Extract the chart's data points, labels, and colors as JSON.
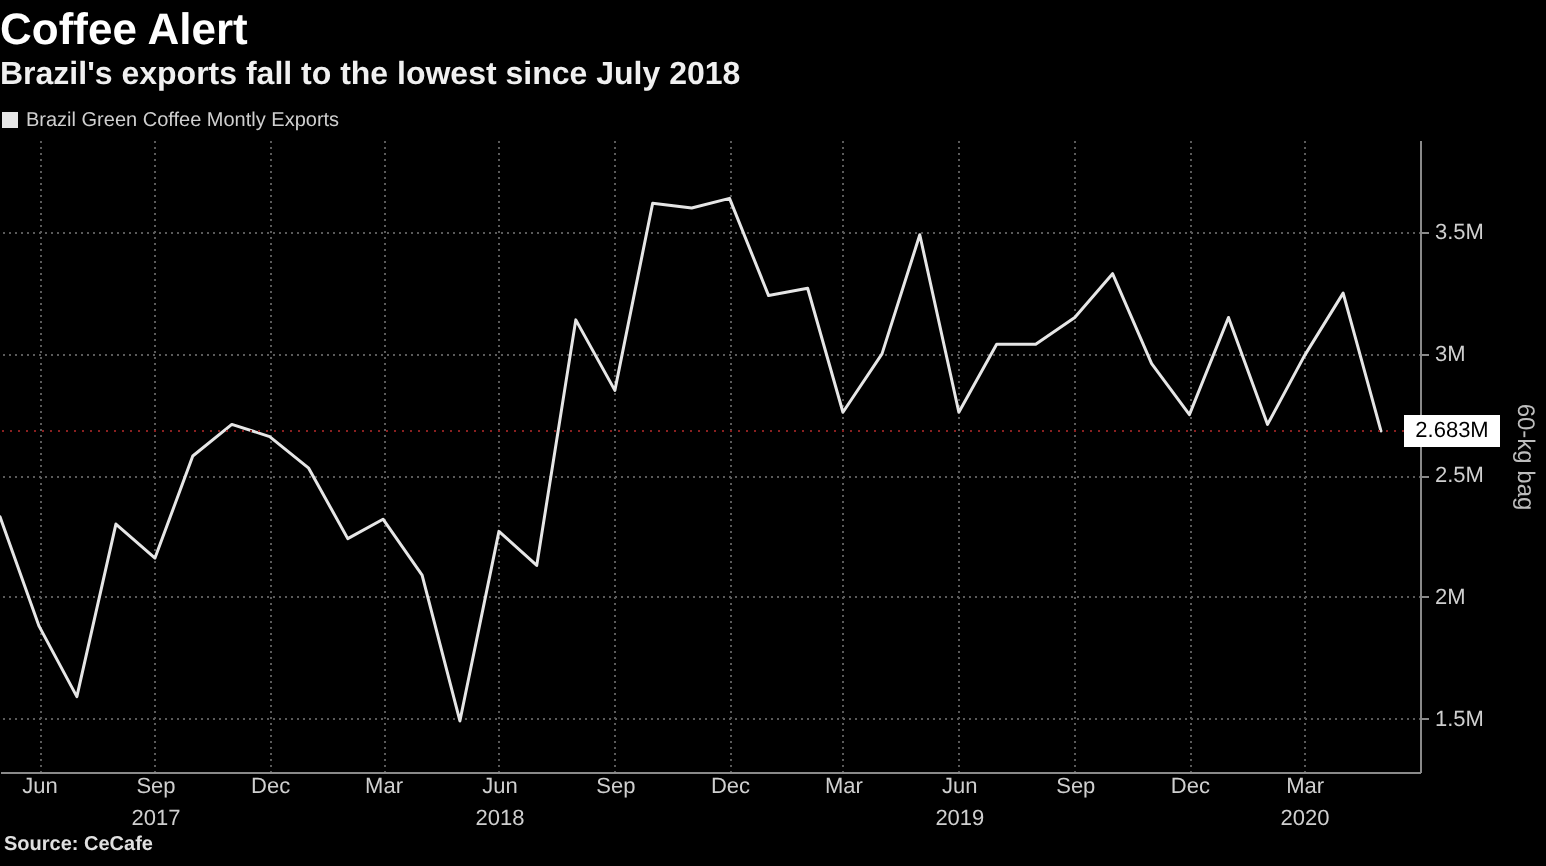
{
  "chart_data": {
    "type": "line",
    "title": "Coffee Alert",
    "subtitle": "Brazil's exports fall to the lowest since July 2018",
    "ylabel": "60-kg bag",
    "annotations": [
      "Source: CeCafe"
    ],
    "x": [
      "2017-05",
      "2017-06",
      "2017-07",
      "2017-08",
      "2017-09",
      "2017-10",
      "2017-11",
      "2017-12",
      "2018-01",
      "2018-02",
      "2018-03",
      "2018-04",
      "2018-05",
      "2018-06",
      "2018-07",
      "2018-08",
      "2018-09",
      "2018-10",
      "2018-11",
      "2018-12",
      "2019-01",
      "2019-02",
      "2019-03",
      "2019-04",
      "2019-05",
      "2019-06",
      "2019-07",
      "2019-08",
      "2019-09",
      "2019-10",
      "2019-11",
      "2019-12",
      "2020-01",
      "2020-02",
      "2020-03",
      "2020-04",
      "2020-05"
    ],
    "series": [
      {
        "name": "Brazil Green Coffee Montly Exports",
        "color": "#e6e6e6",
        "values": [
          2.33,
          1.88,
          1.59,
          2.3,
          2.16,
          2.58,
          2.71,
          2.66,
          2.53,
          2.24,
          2.32,
          2.09,
          1.49,
          2.27,
          2.13,
          3.14,
          2.85,
          3.62,
          3.6,
          3.64,
          3.24,
          3.27,
          2.76,
          3.0,
          3.49,
          2.76,
          3.04,
          3.04,
          3.15,
          3.33,
          2.96,
          2.75,
          3.15,
          2.71,
          2.99,
          3.25,
          2.683
        ]
      }
    ],
    "xlim": [
      "2017-05",
      "2020-06"
    ],
    "xticks": [
      {
        "value": "2017-06",
        "label": "Jun"
      },
      {
        "value": "2017-09",
        "label": "Sep\n2017"
      },
      {
        "value": "2017-12",
        "label": "Dec"
      },
      {
        "value": "2018-03",
        "label": "Mar"
      },
      {
        "value": "2018-06",
        "label": "Jun\n2018"
      },
      {
        "value": "2018-09",
        "label": "Sep"
      },
      {
        "value": "2018-12",
        "label": "Dec"
      },
      {
        "value": "2019-03",
        "label": "Mar"
      },
      {
        "value": "2019-06",
        "label": "Jun\n2019"
      },
      {
        "value": "2019-09",
        "label": "Sep"
      },
      {
        "value": "2019-12",
        "label": "Dec"
      },
      {
        "value": "2020-03",
        "label": "Mar\n2020"
      }
    ],
    "ylim": [
      1.28,
      3.88
    ],
    "yticks": [
      {
        "value": 1.5,
        "label": "1.5M"
      },
      {
        "value": 2,
        "label": "2M"
      },
      {
        "value": 2.5,
        "label": "2.5M"
      },
      {
        "value": 3,
        "label": "3M"
      },
      {
        "value": 3.5,
        "label": "3.5M"
      }
    ],
    "ref_lines": [
      {
        "axis": "y",
        "value": 2.683,
        "label": "2.683M",
        "color": "#8a2020",
        "line_style": "dotted"
      }
    ],
    "grid": true,
    "legend": "top left",
    "line_style": "solid"
  }
}
